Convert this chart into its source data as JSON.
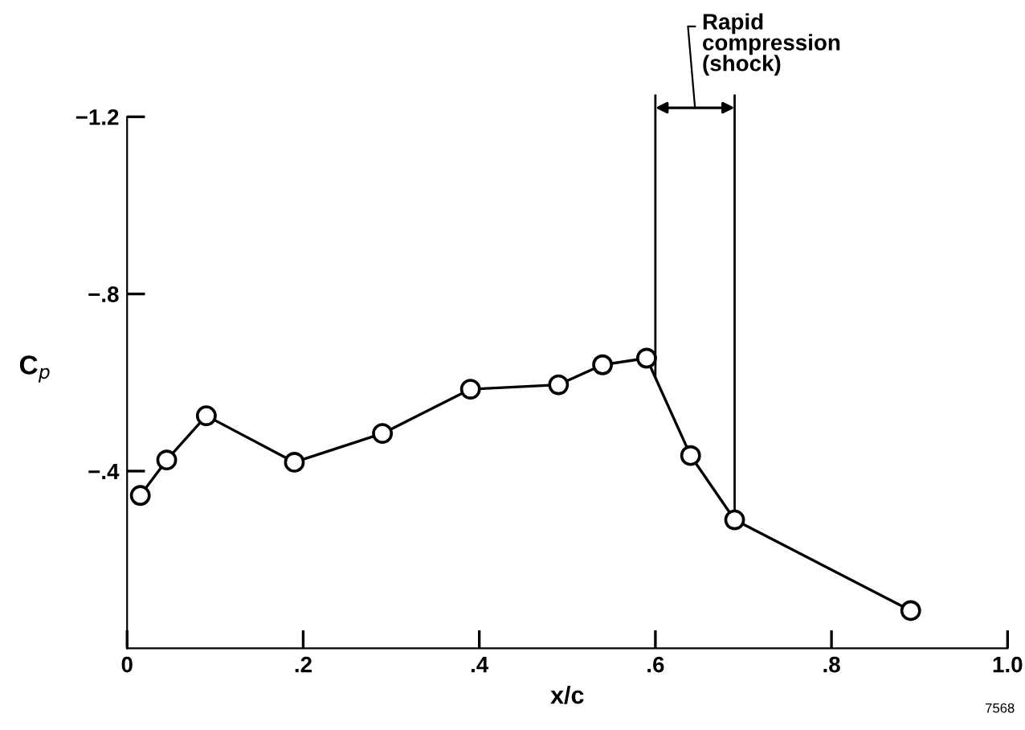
{
  "chart_data": {
    "type": "line",
    "xlabel": "x/c",
    "ylabel": "C$_{p}$",
    "series": [
      {
        "color": "#000000",
        "x": [
          0.015,
          0.045,
          0.09,
          0.19,
          0.29,
          0.39,
          0.49,
          0.54,
          0.59,
          0.64,
          0.69,
          0.89
        ],
        "values": [
          -0.345,
          -0.425,
          -0.525,
          -0.42,
          -0.485,
          -0.585,
          -0.595,
          -0.64,
          -0.655,
          -0.435,
          -0.29,
          -0.085
        ]
      }
    ],
    "marker": "circle",
    "line_style": "solid",
    "xlim": [
      0,
      1.0
    ],
    "xticks": [
      0,
      {
        "value": 0.2,
        "label": ".2"
      },
      {
        "value": 0.4,
        "label": ".4"
      },
      {
        "value": 0.6,
        "label": ".6"
      },
      {
        "value": 0.8,
        "label": ".8"
      },
      {
        "value": 1.0,
        "label": "1.0"
      }
    ],
    "ylim": [
      0,
      -1.2
    ],
    "yticks": [
      {
        "value": -1.2,
        "label": "−1.2"
      },
      {
        "value": -0.8,
        "label": "−.8"
      },
      {
        "value": -0.4,
        "label": "−.4"
      }
    ],
    "ref_lines": [
      {
        "axis": "x",
        "value": 0.6
      },
      {
        "axis": "x",
        "value": 0.69
      }
    ],
    "annotations": [
      "Rapid\ncompression\n(shock)",
      "7568"
    ]
  }
}
